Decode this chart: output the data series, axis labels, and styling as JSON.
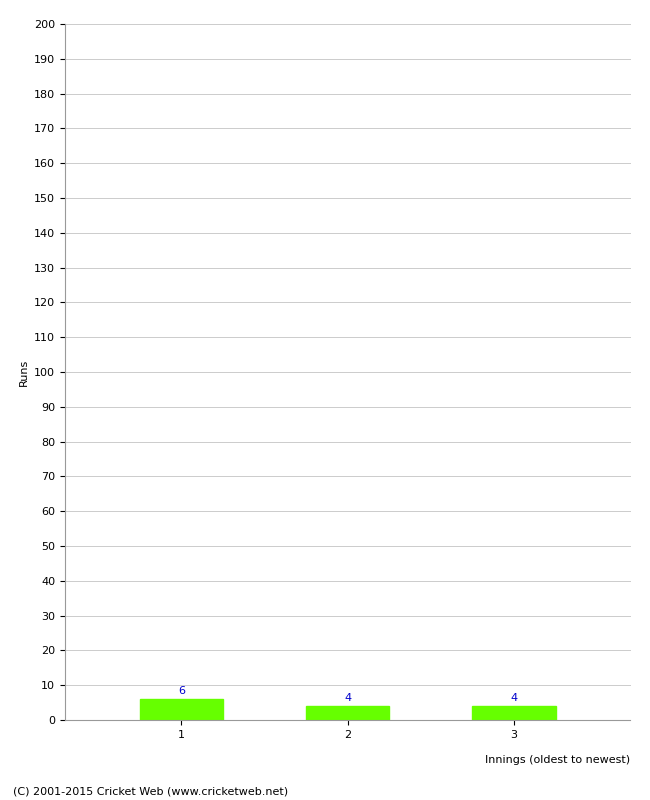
{
  "categories": [
    "1",
    "2",
    "3"
  ],
  "values": [
    6,
    4,
    4
  ],
  "bar_color": "#66ff00",
  "bar_edge_color": "#66ff00",
  "ylabel": "Runs",
  "xlabel": "Innings (oldest to newest)",
  "ylim": [
    0,
    200
  ],
  "yticks": [
    0,
    10,
    20,
    30,
    40,
    50,
    60,
    70,
    80,
    90,
    100,
    110,
    120,
    130,
    140,
    150,
    160,
    170,
    180,
    190,
    200
  ],
  "value_color": "#0000cc",
  "value_fontsize": 8,
  "axis_label_fontsize": 8,
  "tick_fontsize": 8,
  "footer_text": "(C) 2001-2015 Cricket Web (www.cricketweb.net)",
  "footer_fontsize": 8,
  "background_color": "#ffffff",
  "grid_color": "#cccccc",
  "spine_color": "#999999"
}
